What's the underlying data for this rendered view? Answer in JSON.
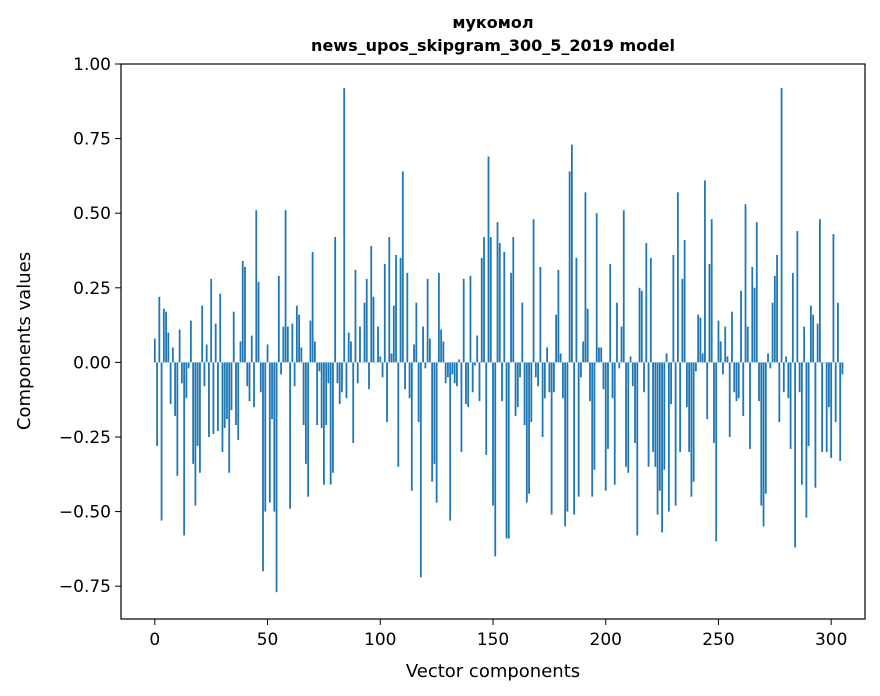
{
  "chart_data": {
    "type": "bar",
    "title": "мукомол",
    "subtitle": "news_upos_skipgram_300_5_2019 model",
    "xlabel": "Vector components",
    "ylabel": "Components values",
    "xlim": [
      -15,
      315
    ],
    "ylim": [
      -0.86,
      1.0
    ],
    "xticks": [
      0,
      50,
      100,
      150,
      200,
      250,
      300
    ],
    "xtick_labels": [
      "0",
      "50",
      "100",
      "150",
      "200",
      "250",
      "300"
    ],
    "yticks": [
      1.0,
      0.75,
      0.5,
      0.25,
      0.0,
      -0.25,
      -0.5,
      -0.75
    ],
    "ytick_labels": [
      "1.00",
      "0.75",
      "0.50",
      "0.25",
      "0.00",
      "−0.25",
      "−0.50",
      "−0.75"
    ],
    "grid": false,
    "bar_color": "#1f77b4",
    "series": [
      {
        "x_start": 0,
        "values": [
          0.08,
          -0.28,
          0.22,
          -0.53,
          0.18,
          0.17,
          0.1,
          -0.14,
          0.05,
          -0.18,
          -0.38,
          0.11,
          -0.07,
          -0.58,
          -0.12,
          -0.02,
          0.14,
          -0.34,
          -0.48,
          -0.28,
          -0.37,
          0.19,
          -0.08,
          0.06,
          -0.25,
          0.28,
          -0.24,
          0.13,
          -0.23,
          0.23,
          -0.3,
          -0.22,
          -0.19,
          -0.37,
          -0.16,
          0.17,
          -0.21,
          -0.26,
          0.07,
          0.34,
          0.32,
          -0.08,
          -0.13,
          0.09,
          -0.15,
          0.51,
          0.27,
          -0.1,
          -0.7,
          -0.5,
          0.06,
          -0.47,
          -0.19,
          -0.5,
          -0.77,
          0.29,
          -0.04,
          0.12,
          0.51,
          0.12,
          -0.49,
          0.13,
          -0.08,
          0.19,
          0.16,
          0.05,
          -0.21,
          -0.34,
          -0.45,
          0.14,
          0.37,
          0.07,
          -0.21,
          -0.03,
          -0.22,
          -0.41,
          -0.21,
          -0.07,
          -0.41,
          -0.37,
          0.42,
          -0.07,
          -0.14,
          -0.1,
          0.92,
          -0.12,
          0.1,
          0.07,
          -0.27,
          0.31,
          -0.07,
          0.12,
          0.0,
          0.2,
          0.28,
          -0.09,
          0.39,
          0.22,
          0.0,
          0.12,
          0.02,
          -0.05,
          0.33,
          -0.2,
          0.42,
          0.03,
          0.19,
          0.36,
          -0.35,
          0.35,
          0.64,
          -0.09,
          0.3,
          -0.12,
          -0.43,
          0.06,
          0.2,
          -0.2,
          -0.72,
          0.12,
          -0.02,
          0.28,
          0.08,
          -0.4,
          -0.34,
          -0.47,
          0.3,
          0.11,
          0.07,
          -0.07,
          -0.05,
          -0.53,
          -0.04,
          -0.07,
          -0.08,
          0.01,
          -0.3,
          0.28,
          -0.14,
          -0.15,
          0.29,
          -0.1,
          -0.01,
          0.09,
          -0.13,
          0.35,
          0.42,
          -0.31,
          0.69,
          0.42,
          -0.48,
          -0.65,
          0.47,
          0.4,
          -0.13,
          0.37,
          -0.59,
          -0.59,
          0.3,
          0.42,
          -0.18,
          -0.15,
          -0.05,
          0.2,
          -0.21,
          -0.47,
          -0.44,
          -0.2,
          0.48,
          -0.05,
          -0.08,
          0.32,
          -0.25,
          -0.12,
          0.05,
          -0.1,
          -0.51,
          -0.1,
          0.16,
          0.31,
          0.03,
          -0.12,
          -0.55,
          -0.5,
          0.64,
          0.73,
          -0.51,
          0.35,
          -0.45,
          -0.05,
          0.07,
          0.57,
          0.18,
          -0.13,
          -0.45,
          -0.36,
          0.5,
          0.05,
          0.05,
          -0.09,
          -0.43,
          -0.29,
          0.33,
          -0.12,
          -0.41,
          0.2,
          -0.02,
          0.12,
          0.51,
          -0.35,
          -0.37,
          0.02,
          -0.08,
          -0.27,
          -0.58,
          0.25,
          0.24,
          -0.1,
          0.4,
          -0.35,
          0.35,
          -0.3,
          -0.35,
          -0.51,
          -0.43,
          -0.57,
          -0.36,
          0.03,
          -0.5,
          -0.14,
          0.36,
          -0.48,
          0.57,
          -0.3,
          0.28,
          0.41,
          -0.15,
          -0.3,
          -0.45,
          -0.4,
          -0.03,
          0.16,
          0.15,
          0.03,
          0.61,
          -0.19,
          0.33,
          0.48,
          -0.27,
          -0.6,
          0.14,
          0.07,
          -0.04,
          0.12,
          0.02,
          -0.25,
          0.17,
          -0.1,
          -0.13,
          -0.12,
          0.24,
          -0.18,
          0.53,
          0.12,
          -0.29,
          0.32,
          0.25,
          0.47,
          -0.13,
          -0.48,
          -0.55,
          -0.44,
          0.03,
          -0.02,
          0.2,
          0.29,
          0.36,
          -0.2,
          0.92,
          -0.1,
          0.02,
          -0.12,
          -0.29,
          0.3,
          -0.62,
          0.44,
          -0.1,
          -0.41,
          0.12,
          -0.52,
          -0.28,
          0.19,
          0.16,
          -0.42,
          0.13,
          0.48,
          -0.3,
          0.0,
          -0.3,
          -0.15,
          -0.32,
          0.43,
          -0.2,
          0.2,
          -0.33,
          -0.04
        ]
      }
    ]
  }
}
